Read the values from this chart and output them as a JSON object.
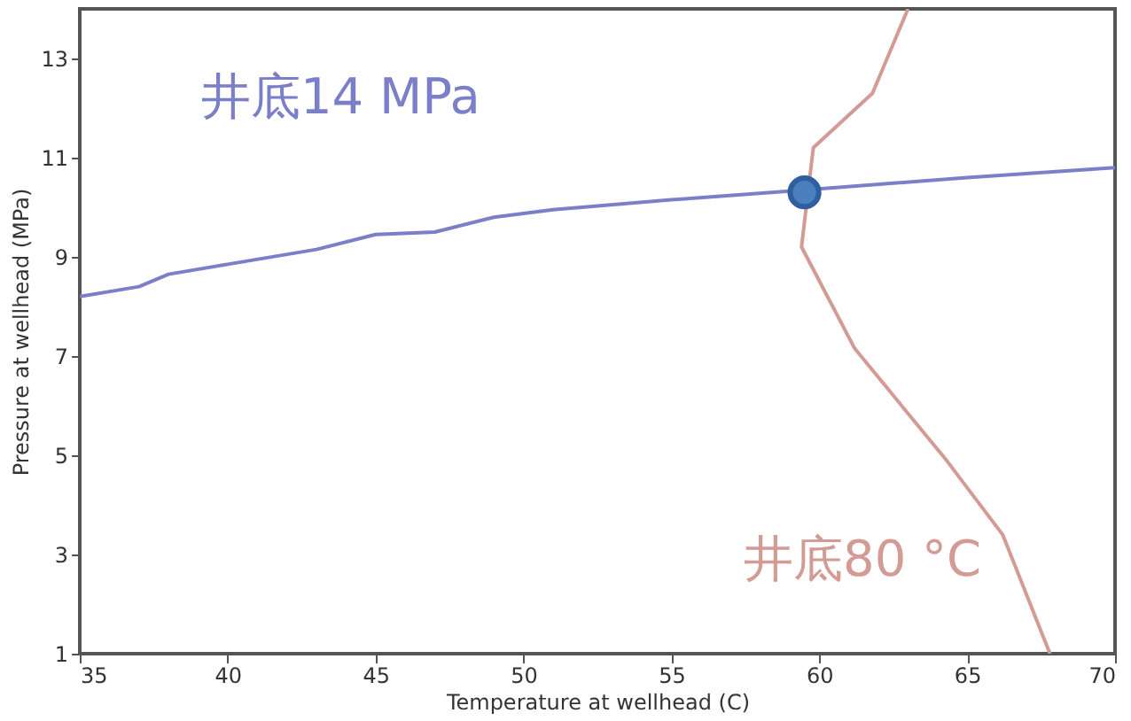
{
  "chart_data": {
    "type": "line",
    "xlabel": "Temperature at wellhead (C)",
    "ylabel": "Pressure at wellhead (MPa)",
    "xlim": [
      35,
      70
    ],
    "xticks": [
      35,
      40,
      45,
      50,
      55,
      60,
      65,
      70
    ],
    "ylim": [
      1,
      14
    ],
    "yticks": [
      1,
      3,
      5,
      7,
      9,
      11,
      13
    ],
    "grid": false,
    "legend": false,
    "marker": "none",
    "series": [
      {
        "name": "井底14 MPa",
        "color": "#7b7fc8",
        "x": [
          35,
          37,
          38,
          40,
          43,
          45,
          47,
          49,
          51,
          55,
          59.5,
          65,
          70
        ],
        "values": [
          8.2,
          8.4,
          8.65,
          8.85,
          9.15,
          9.45,
          9.5,
          9.8,
          9.95,
          10.15,
          10.35,
          10.6,
          10.8
        ]
      },
      {
        "name": "井底80 °C",
        "color": "#d49a94",
        "x": [
          63.0,
          61.8,
          59.8,
          59.4,
          61.2,
          64.3,
          66.2,
          67.8
        ],
        "values": [
          14,
          12.3,
          11.2,
          9.2,
          7.15,
          4.9,
          3.4,
          1
        ]
      },
      {
        "type": "scatter",
        "marker": "circle",
        "color": "#2f5f9e",
        "x": [
          59.5
        ],
        "values": [
          10.3
        ]
      }
    ]
  }
}
